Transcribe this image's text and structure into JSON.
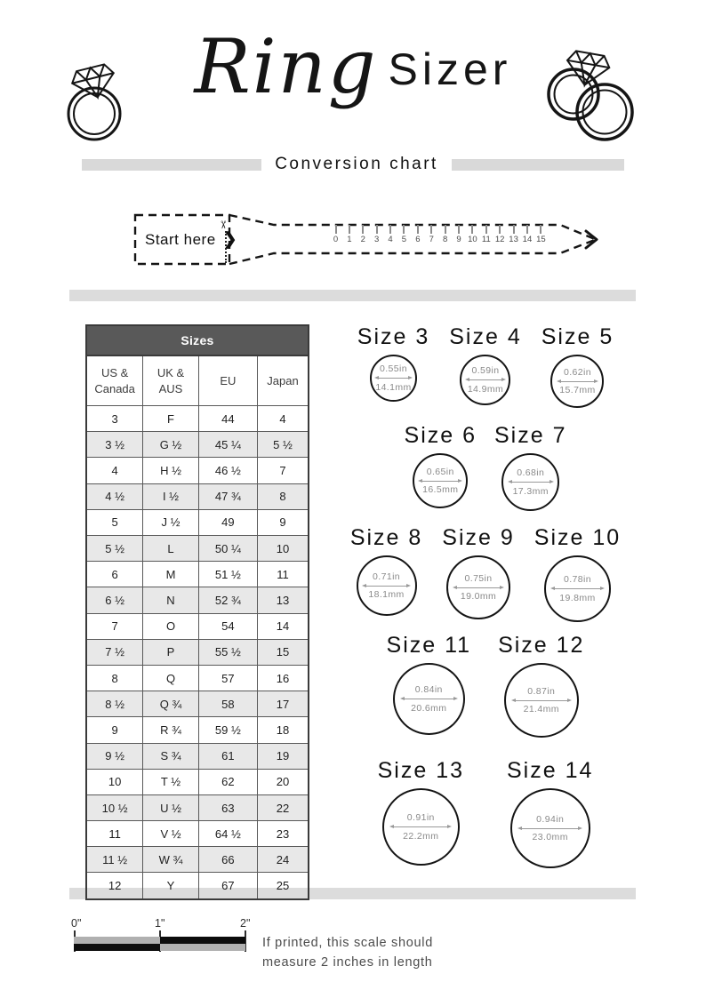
{
  "header": {
    "title_script": "Ring",
    "title_sans": "Sizer",
    "subtitle": "Conversion chart"
  },
  "sizer_tool": {
    "start_label": "Start here",
    "start_chevron": "❯",
    "scissors": "✂",
    "ruler_numbers": [
      "0",
      "1",
      "2",
      "3",
      "4",
      "5",
      "6",
      "7",
      "8",
      "9",
      "10",
      "11",
      "12",
      "13",
      "14",
      "15"
    ]
  },
  "size_table": {
    "title": "Sizes",
    "columns": [
      "US & Canada",
      "UK & AUS",
      "EU",
      "Japan"
    ],
    "rows": [
      [
        "3",
        "F",
        "44",
        "4"
      ],
      [
        "3 ½",
        "G ½",
        "45 ¼",
        "5 ½"
      ],
      [
        "4",
        "H ½",
        "46 ½",
        "7"
      ],
      [
        "4 ½",
        "I ½",
        "47 ¾",
        "8"
      ],
      [
        "5",
        "J ½",
        "49",
        "9"
      ],
      [
        "5 ½",
        "L",
        "50 ¼",
        "10"
      ],
      [
        "6",
        "M",
        "51 ½",
        "11"
      ],
      [
        "6 ½",
        "N",
        "52 ¾",
        "13"
      ],
      [
        "7",
        "O",
        "54",
        "14"
      ],
      [
        "7 ½",
        "P",
        "55 ½",
        "15"
      ],
      [
        "8",
        "Q",
        "57",
        "16"
      ],
      [
        "8 ½",
        "Q ¾",
        "58",
        "17"
      ],
      [
        "9",
        "R ¾",
        "59 ½",
        "18"
      ],
      [
        "9 ½",
        "S ¾",
        "61",
        "19"
      ],
      [
        "10",
        "T ½",
        "62",
        "20"
      ],
      [
        "10 ½",
        "U ½",
        "63",
        "22"
      ],
      [
        "11",
        "V ½",
        "64 ½",
        "23"
      ],
      [
        "11 ½",
        "W ¾",
        "66",
        "24"
      ],
      [
        "12",
        "Y",
        "67",
        "25"
      ]
    ]
  },
  "size_circles": {
    "rows": [
      [
        {
          "label": "Size 3",
          "inches": "0.55in",
          "mm": "14.1mm",
          "diameter_in": 0.55
        },
        {
          "label": "Size 4",
          "inches": "0.59in",
          "mm": "14.9mm",
          "diameter_in": 0.59
        },
        {
          "label": "Size 5",
          "inches": "0.62in",
          "mm": "15.7mm",
          "diameter_in": 0.62
        }
      ],
      [
        {
          "label": "Size 6",
          "inches": "0.65in",
          "mm": "16.5mm",
          "diameter_in": 0.65
        },
        {
          "label": "Size 7",
          "inches": "0.68in",
          "mm": "17.3mm",
          "diameter_in": 0.68
        }
      ],
      [
        {
          "label": "Size 8",
          "inches": "0.71in",
          "mm": "18.1mm",
          "diameter_in": 0.71
        },
        {
          "label": "Size 9",
          "inches": "0.75in",
          "mm": "19.0mm",
          "diameter_in": 0.75
        },
        {
          "label": "Size 10",
          "inches": "0.78in",
          "mm": "19.8mm",
          "diameter_in": 0.78
        }
      ],
      [
        {
          "label": "Size 11",
          "inches": "0.84in",
          "mm": "20.6mm",
          "diameter_in": 0.84
        },
        {
          "label": "Size 12",
          "inches": "0.87in",
          "mm": "21.4mm",
          "diameter_in": 0.87
        }
      ],
      [
        {
          "label": "Size 13",
          "inches": "0.91in",
          "mm": "22.2mm",
          "diameter_in": 0.91
        },
        {
          "label": "Size 14",
          "inches": "0.94in",
          "mm": "23.0mm",
          "diameter_in": 0.94
        }
      ]
    ]
  },
  "footer": {
    "scale_labels": [
      "0\"",
      "1\"",
      "2\""
    ],
    "note_line1": "If printed, this scale should",
    "note_line2": "measure 2 inches in length"
  },
  "colors": {
    "separator_bar": "#dcdcdc",
    "table_header_bg": "#595959",
    "table_alt_row_bg": "#e8e8e8",
    "dimension_text": "#8a8a8a",
    "scale_gray": "#b0b0b0",
    "scale_black": "#0c0c0c"
  }
}
